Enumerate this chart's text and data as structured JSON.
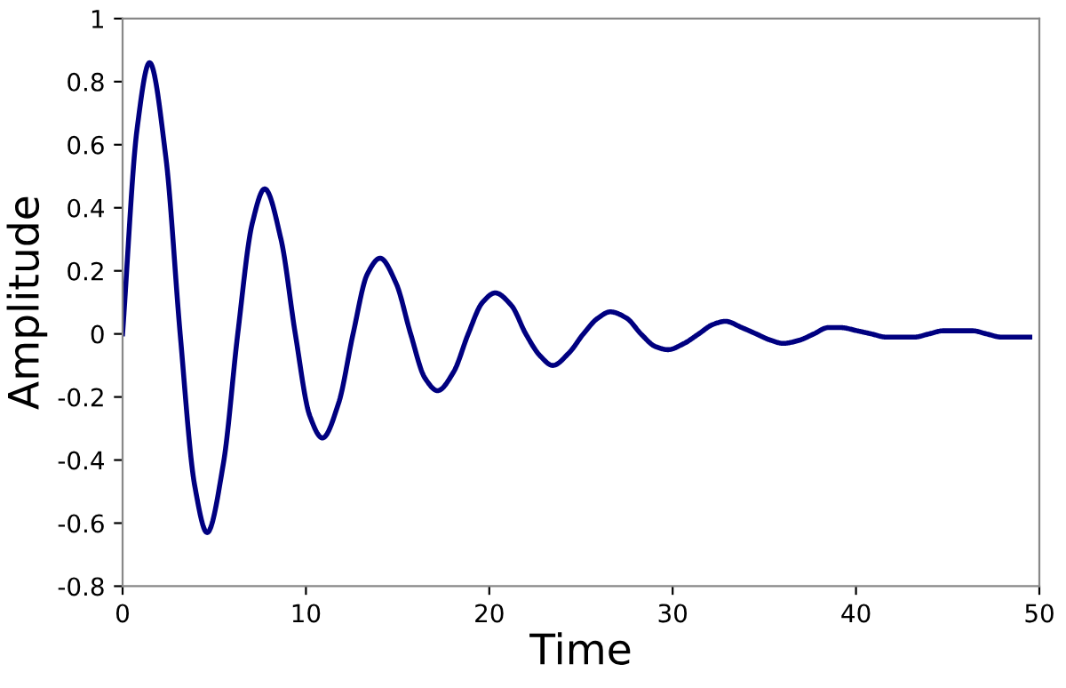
{
  "chart_data": {
    "type": "line",
    "xlabel": "Time",
    "ylabel": "Amplitude",
    "xlim": [
      0,
      50
    ],
    "xticks": [
      0,
      10,
      20,
      30,
      40,
      50
    ],
    "ylim": [
      -0.8,
      1
    ],
    "yticks": [
      -0.8,
      -0.6,
      -0.4,
      -0.2,
      0,
      0.2,
      0.4,
      0.6,
      0.8,
      1
    ],
    "grid": false,
    "legend": false,
    "marker": "none",
    "line_style": "solid",
    "series": [
      {
        "color": "#000080",
        "x": [
          0,
          0.79,
          1.47,
          2.36,
          3.14,
          3.93,
          4.61,
          5.5,
          6.28,
          7.07,
          7.75,
          8.64,
          9.42,
          10.21,
          10.9,
          11.78,
          12.57,
          13.35,
          14.04,
          14.92,
          15.71,
          16.49,
          17.18,
          18.06,
          18.85,
          19.63,
          20.32,
          21.21,
          21.99,
          22.78,
          23.46,
          24.35,
          25.13,
          25.92,
          26.6,
          27.49,
          28.27,
          29.06,
          29.74,
          30.63,
          31.42,
          32.2,
          32.88,
          33.77,
          34.56,
          35.34,
          36.03,
          36.91,
          37.7,
          38.48,
          39.17,
          40.06,
          40.84,
          41.63,
          42.31,
          43.2,
          43.98,
          44.77,
          45.45,
          46.34,
          47.12,
          47.91,
          48.59,
          49.48
        ],
        "values": [
          0,
          0.65,
          0.86,
          0.56,
          0,
          -0.48,
          -0.63,
          -0.41,
          0,
          0.35,
          0.46,
          0.3,
          0,
          -0.26,
          -0.33,
          -0.22,
          0,
          0.19,
          0.24,
          0.16,
          0,
          -0.14,
          -0.18,
          -0.12,
          0,
          0.1,
          0.13,
          0.09,
          0,
          -0.07,
          -0.1,
          -0.06,
          0,
          0.05,
          0.07,
          0.05,
          0,
          -0.04,
          -0.05,
          -0.03,
          0,
          0.03,
          0.04,
          0.02,
          0,
          -0.02,
          -0.03,
          -0.02,
          0,
          0.02,
          0.02,
          0.01,
          0,
          -0.01,
          -0.01,
          -0.01,
          0,
          0.01,
          0.01,
          0.01,
          0,
          -0.01,
          -0.01,
          -0.01
        ]
      }
    ]
  }
}
